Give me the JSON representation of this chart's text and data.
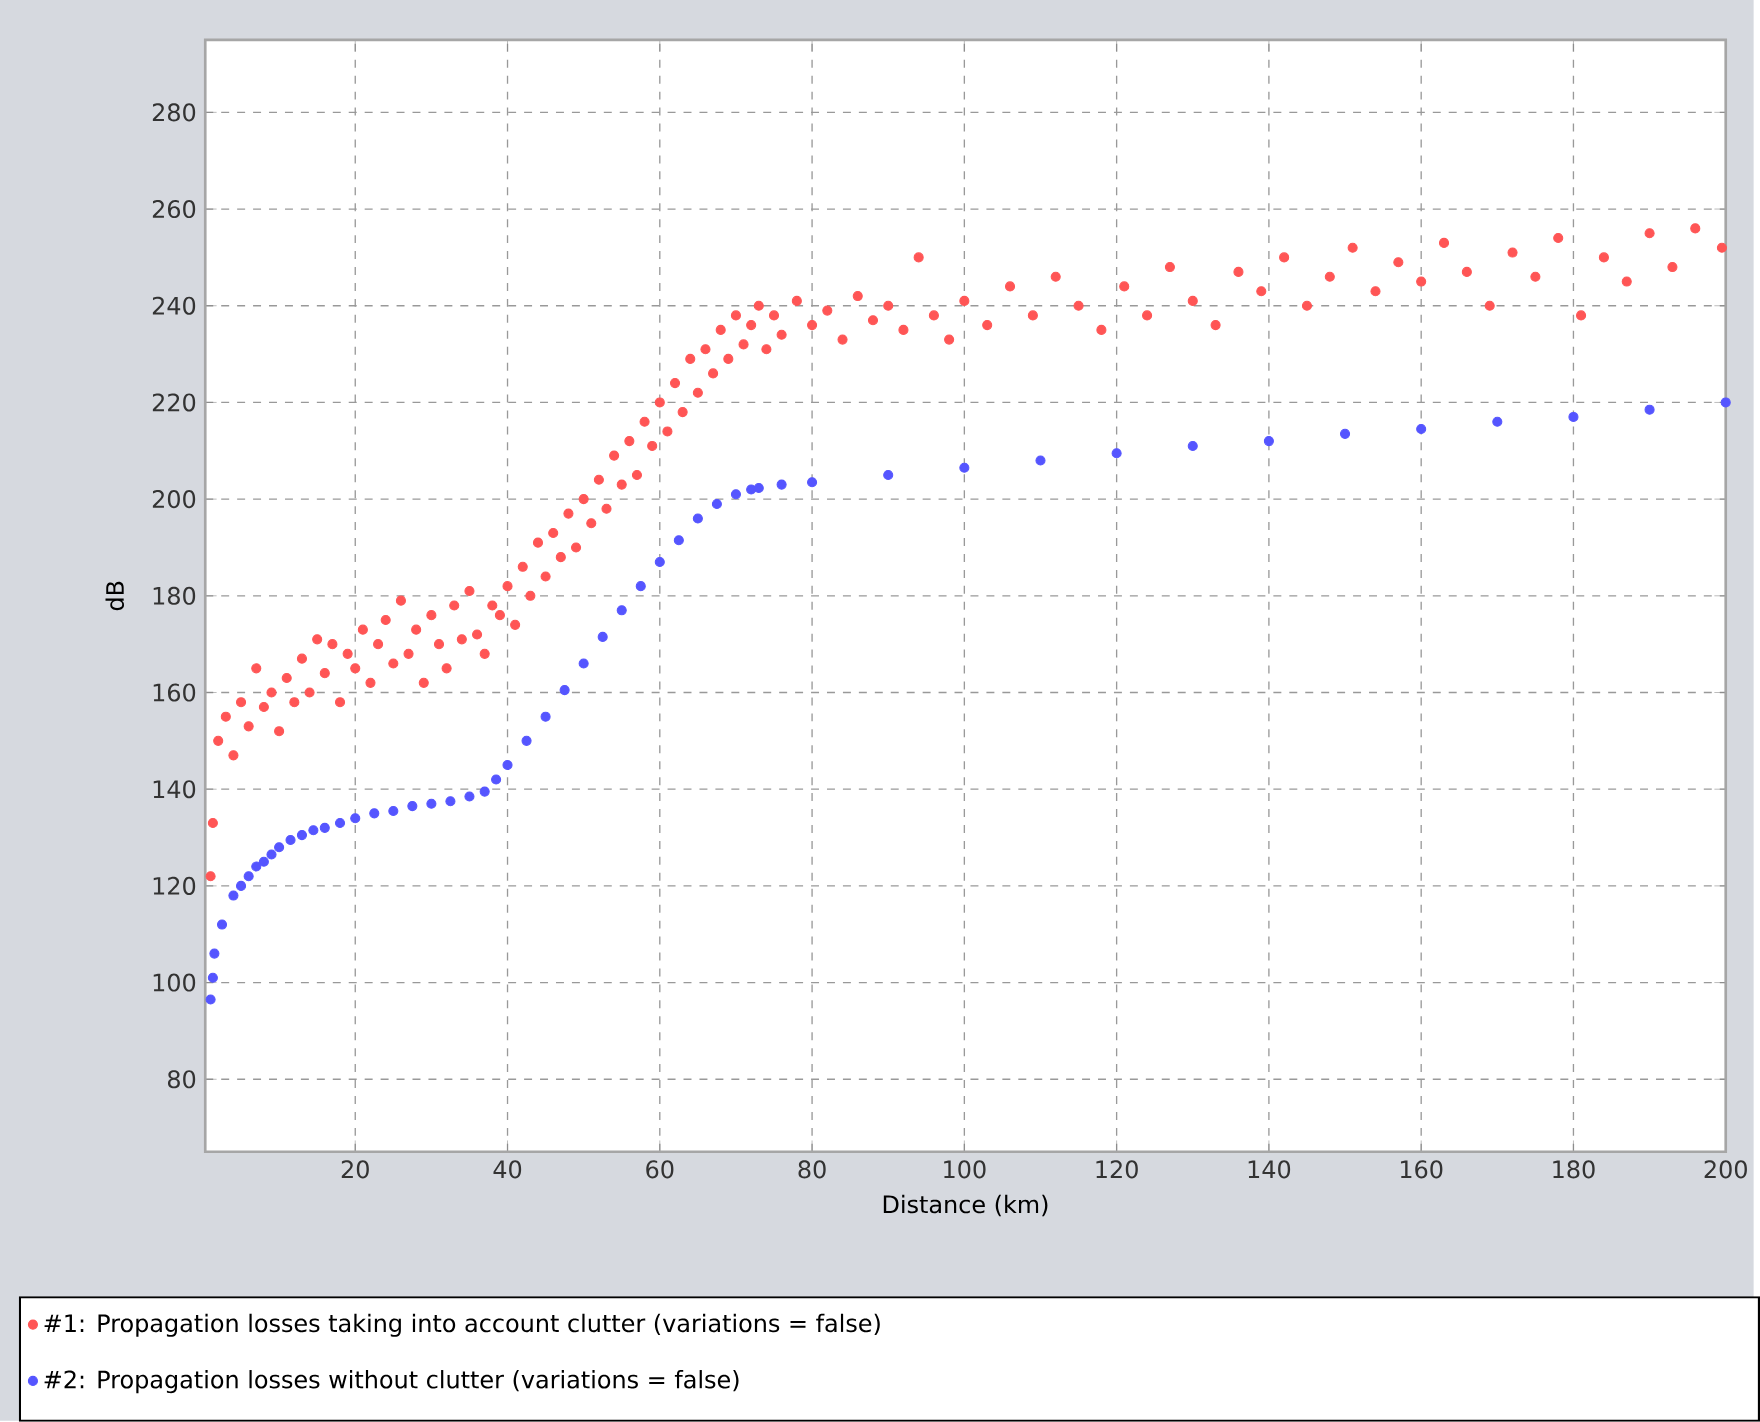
{
  "chart_data": {
    "type": "scatter",
    "xlabel": "Distance (km)",
    "ylabel": "dB",
    "xlim": [
      0.3,
      200
    ],
    "ylim": [
      65,
      295
    ],
    "xticks": [
      20,
      40,
      60,
      80,
      100,
      120,
      140,
      160,
      180,
      200
    ],
    "yticks": [
      80,
      100,
      120,
      140,
      160,
      180,
      200,
      220,
      240,
      260,
      280
    ],
    "grid": true,
    "legend": "bottom",
    "series": [
      {
        "name": "#1: Propagation losses taking into account clutter (variations = false)",
        "color": "#ff5555",
        "x": [
          1,
          1.3,
          2,
          3,
          4,
          5,
          6,
          7,
          8,
          9,
          10,
          11,
          12,
          13,
          14,
          15,
          16,
          17,
          18,
          19,
          20,
          21,
          22,
          23,
          24,
          25,
          26,
          27,
          28,
          29,
          30,
          31,
          32,
          33,
          34,
          35,
          36,
          37,
          38,
          39,
          40,
          41,
          42,
          43,
          44,
          45,
          46,
          47,
          48,
          49,
          50,
          51,
          52,
          53,
          54,
          55,
          56,
          57,
          58,
          59,
          60,
          61,
          62,
          63,
          64,
          65,
          66,
          67,
          68,
          69,
          70,
          71,
          72,
          73,
          74,
          75,
          76,
          78,
          80,
          82,
          84,
          86,
          88,
          90,
          92,
          94,
          96,
          98,
          100,
          103,
          106,
          109,
          112,
          115,
          118,
          121,
          124,
          127,
          130,
          133,
          136,
          139,
          142,
          145,
          148,
          151,
          154,
          157,
          160,
          163,
          166,
          169,
          172,
          175,
          178,
          181,
          184,
          187,
          190,
          193,
          196,
          199.5
        ],
        "values": [
          122,
          133,
          150,
          155,
          147,
          158,
          153,
          165,
          157,
          160,
          152,
          163,
          158,
          167,
          160,
          171,
          164,
          170,
          158,
          168,
          165,
          173,
          162,
          170,
          175,
          166,
          179,
          168,
          173,
          162,
          176,
          170,
          165,
          178,
          171,
          181,
          172,
          168,
          178,
          176,
          182,
          174,
          186,
          180,
          191,
          184,
          193,
          188,
          197,
          190,
          200,
          195,
          204,
          198,
          209,
          203,
          212,
          205,
          216,
          211,
          220,
          214,
          224,
          218,
          229,
          222,
          231,
          226,
          235,
          229,
          238,
          232,
          236,
          240,
          231,
          238,
          234,
          241,
          236,
          239,
          233,
          242,
          237,
          240,
          235,
          250,
          238,
          233,
          241,
          236,
          244,
          238,
          246,
          240,
          235,
          244,
          238,
          248,
          241,
          236,
          247,
          243,
          250,
          240,
          246,
          252,
          243,
          249,
          245,
          253,
          247,
          240,
          251,
          246,
          254,
          238,
          250,
          245,
          255,
          248,
          256,
          252
        ]
      },
      {
        "name": "#2: Propagation losses without clutter (variations = false)",
        "color": "#5555ff",
        "x": [
          1,
          1.3,
          1.5,
          2.5,
          4,
          5,
          6,
          7,
          8,
          9,
          10,
          11.5,
          13,
          14.5,
          16,
          18,
          20,
          22.5,
          25,
          27.5,
          30,
          32.5,
          35,
          37,
          38.5,
          40,
          42.5,
          45,
          47.5,
          50,
          52.5,
          55,
          57.5,
          60,
          62.5,
          65,
          67.5,
          70,
          72,
          73,
          76,
          80,
          90,
          100,
          110,
          120,
          130,
          140,
          150,
          160,
          170,
          180,
          190,
          200
        ],
        "values": [
          96.5,
          101,
          106,
          112,
          118,
          120,
          122,
          124,
          125,
          126.5,
          128,
          129.5,
          130.5,
          131.5,
          132,
          133,
          134,
          135,
          135.5,
          136.5,
          137,
          137.5,
          138.5,
          139.5,
          142,
          145,
          150,
          155,
          160.5,
          166,
          171.5,
          177,
          182,
          187,
          191.5,
          196,
          199,
          201,
          202,
          202.3,
          203,
          203.5,
          205,
          206.5,
          208,
          209.5,
          211,
          212,
          213.5,
          214.5,
          216,
          217,
          218.5,
          220
        ]
      }
    ]
  }
}
